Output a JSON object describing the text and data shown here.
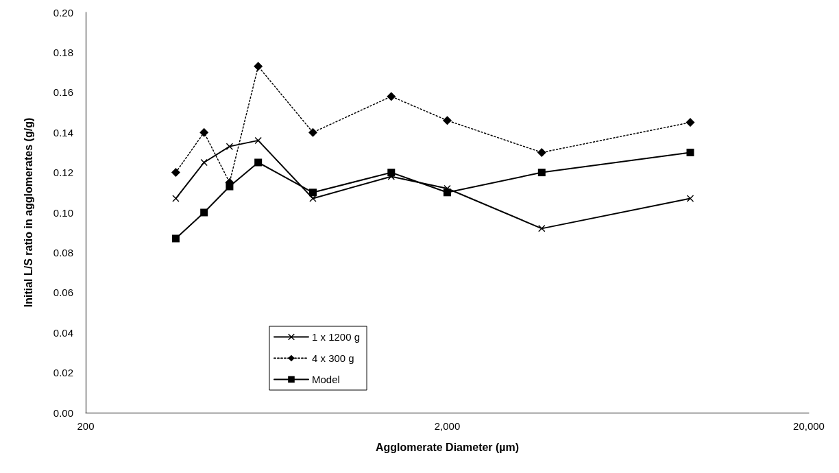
{
  "chart_data": {
    "type": "line",
    "xlabel": "Agglomerate Diameter (µm)",
    "ylabel": "Initial L/S ratio in agglomerates (g/g)",
    "x": [
      355,
      425,
      500,
      600,
      850,
      1400,
      2000,
      3650,
      9400
    ],
    "series": [
      {
        "name": "1 x 1200 g",
        "color": "#000000",
        "marker": "cross",
        "line_style": "solid",
        "values": [
          0.107,
          0.125,
          0.133,
          0.136,
          0.107,
          0.118,
          0.112,
          0.092,
          0.107
        ]
      },
      {
        "name": "4 x 300 g",
        "color": "#000000",
        "marker": "diamond",
        "line_style": "dotted",
        "values": [
          0.12,
          0.14,
          0.115,
          0.173,
          0.14,
          0.158,
          0.146,
          0.13,
          0.145
        ]
      },
      {
        "name": "Model",
        "color": "#000000",
        "marker": "square",
        "line_style": "solid",
        "values": [
          0.087,
          0.1,
          0.113,
          0.125,
          0.11,
          0.12,
          0.11,
          0.12,
          0.13
        ]
      }
    ],
    "log": "x",
    "xlim": [
      200,
      20000
    ],
    "xticks": [
      {
        "value": 200,
        "label": "200"
      },
      {
        "value": 2000,
        "label": "2,000"
      },
      {
        "value": 20000,
        "label": "20,000"
      }
    ],
    "ylim": [
      0,
      0.2
    ],
    "yticks": [
      {
        "value": 0,
        "label": "0.00"
      },
      {
        "value": 0.02,
        "label": "0.02"
      },
      {
        "value": 0.04,
        "label": "0.04"
      },
      {
        "value": 0.06,
        "label": "0.06"
      },
      {
        "value": 0.08,
        "label": "0.08"
      },
      {
        "value": 0.1,
        "label": "0.10"
      },
      {
        "value": 0.12,
        "label": "0.12"
      },
      {
        "value": 0.14,
        "label": "0.14"
      },
      {
        "value": 0.16,
        "label": "0.16"
      },
      {
        "value": 0.18,
        "label": "0.18"
      },
      {
        "value": 0.2,
        "label": "0.20"
      }
    ],
    "grid": false,
    "legend": "bottom left"
  }
}
